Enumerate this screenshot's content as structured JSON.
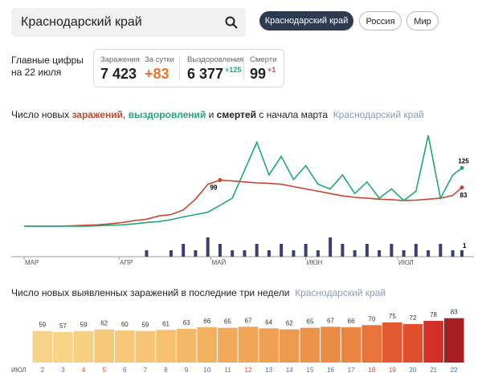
{
  "search": {
    "query": "Краснодарский край"
  },
  "regions": [
    "Краснодарский край",
    "Россия",
    "Мир"
  ],
  "summary": {
    "title_lines": [
      "Главные цифры",
      "на 22 июля"
    ],
    "stats": [
      {
        "label": "Заражения",
        "value": "7 423"
      },
      {
        "label": "За сутки",
        "value": "+83",
        "color": "#e8732c"
      },
      {
        "label": "Выздоровления",
        "value": "6 377",
        "delta": "+125",
        "color": "#21a67a"
      },
      {
        "label": "Смерти",
        "value": "99",
        "delta": "+1",
        "color": "#e0452f"
      }
    ]
  },
  "chart_data": [
    {
      "type": "line",
      "title_start": "Число новых",
      "title_joins": [
        ",",
        "и"
      ],
      "title_end": "с начала марта",
      "subtitle": "Краснодарский край",
      "x": [
        0,
        4,
        8,
        12,
        16,
        20,
        24,
        28,
        32,
        36,
        40,
        44,
        48,
        52,
        56,
        60,
        64,
        68,
        72,
        76,
        80,
        84,
        88,
        92,
        96,
        100,
        104,
        108,
        112,
        116,
        120,
        124,
        128,
        132,
        136,
        140,
        143
      ],
      "xlim": [
        0,
        143
      ],
      "xticks": [
        {
          "value": 0,
          "label": "МАР"
        },
        {
          "value": 31,
          "label": "АПР"
        },
        {
          "value": 61,
          "label": "МАЙ"
        },
        {
          "value": 92,
          "label": "ИЮН"
        },
        {
          "value": 122,
          "label": "ИЮЛ"
        }
      ],
      "ylim": [
        0,
        210
      ],
      "y2lim": [
        0,
        3
      ],
      "series": [
        {
          "name": "заражений",
          "color": "#c8452d",
          "values": [
            0,
            0,
            0,
            0,
            1,
            2,
            3,
            5,
            8,
            12,
            15,
            22,
            25,
            35,
            58,
            90,
            99,
            97,
            95,
            93,
            92,
            90,
            85,
            80,
            75,
            70,
            65,
            62,
            60,
            58,
            57,
            55,
            56,
            58,
            60,
            66,
            83
          ]
        },
        {
          "name": "выздоровлений",
          "color": "#21a67a",
          "values": [
            0,
            0,
            0,
            0,
            0,
            0,
            1,
            2,
            3,
            5,
            8,
            10,
            14,
            20,
            25,
            30,
            45,
            60,
            120,
            180,
            110,
            150,
            100,
            130,
            90,
            80,
            110,
            70,
            95,
            60,
            80,
            55,
            75,
            195,
            60,
            110,
            125
          ]
        },
        {
          "name": "смертей",
          "color": "#3a3f6e",
          "axis": "y2",
          "values": [
            0,
            0,
            0,
            0,
            0,
            0,
            0,
            0,
            0,
            0,
            1,
            0,
            1,
            2,
            1,
            3,
            2,
            1,
            1,
            2,
            1,
            2,
            1,
            2,
            1,
            3,
            2,
            1,
            2,
            1,
            2,
            1,
            2,
            1,
            2,
            1,
            1
          ]
        }
      ]
    },
    {
      "type": "bar",
      "title": "Число новых выявленных заражений в последние три недели",
      "subtitle": "Краснодарский край",
      "axis_label": "ИЮЛ",
      "categories": [
        "2",
        "3",
        "4",
        "5",
        "6",
        "7",
        "8",
        "9",
        "10",
        "11",
        "12",
        "13",
        "14",
        "15",
        "16",
        "17",
        "18",
        "19",
        "20",
        "21",
        "22"
      ],
      "values": [
        59,
        57,
        59,
        62,
        60,
        59,
        61,
        63,
        66,
        65,
        67,
        64,
        62,
        65,
        67,
        66,
        70,
        75,
        72,
        78,
        83
      ],
      "colors": [
        "#f7d488",
        "#f7d287",
        "#f6cf80",
        "#f6c978",
        "#f6c877",
        "#f5c474",
        "#f5c070",
        "#f4b968",
        "#f3b05f",
        "#f2aa5a",
        "#f1a556",
        "#efa052",
        "#ee9a4e",
        "#ec934a",
        "#eb8c46",
        "#e98441",
        "#e7743a",
        "#e25a32",
        "#e0502f",
        "#d3302a",
        "#a51e22"
      ],
      "category_label_colors": [
        "#4a6fa5",
        "#4a6fa5",
        "#e0452f",
        "#e0452f",
        "#4a6fa5",
        "#4a6fa5",
        "#4a6fa5",
        "#4a6fa5",
        "#4a6fa5",
        "#e0452f",
        "#e0452f",
        "#4a6fa5",
        "#4a6fa5",
        "#4a6fa5",
        "#4a6fa5",
        "#4a6fa5",
        "#e0452f",
        "#e0452f",
        "#4a6fa5",
        "#4a6fa5",
        "#4a6fa5"
      ],
      "ylim": [
        0,
        90
      ]
    }
  ]
}
